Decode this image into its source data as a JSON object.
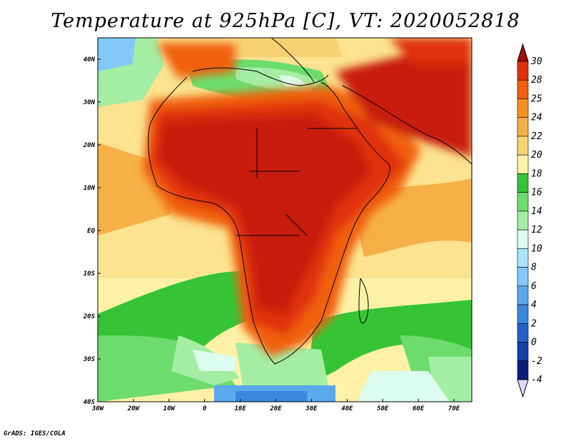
{
  "title": "Temperature at 925hPa [C], VT: 2020052818",
  "credit": "GrADS: IGES/COLA",
  "map": {
    "projection": "latlon",
    "lon_range": [
      -30,
      75
    ],
    "lat_range": [
      -40,
      45
    ],
    "x_ticks": [
      "30W",
      "20W",
      "10W",
      "0",
      "10E",
      "20E",
      "30E",
      "40E",
      "50E",
      "60E",
      "70E"
    ],
    "y_ticks": [
      "40N",
      "30N",
      "20N",
      "10N",
      "EQ",
      "10S",
      "20S",
      "30S",
      "40S"
    ]
  },
  "colorbar": {
    "labels": [
      "30",
      "28",
      "25",
      "24",
      "22",
      "20",
      "18",
      "16",
      "14",
      "12",
      "10",
      "8",
      "6",
      "4",
      "2",
      "0",
      "-2",
      "-4"
    ],
    "colors": [
      "#a50a0a",
      "#e0300a",
      "#f06010",
      "#f8901e",
      "#f6b048",
      "#f8d272",
      "#fff2a6",
      "#36c436",
      "#6cdc6c",
      "#a4eea4",
      "#dcfcf0",
      "#aae4ff",
      "#82c8f8",
      "#5aa8ee",
      "#3a88de",
      "#2460c8",
      "#1440a8",
      "#0c1c7e",
      "#ddd8ff"
    ]
  },
  "colors": {
    "ocean_background": "#fbe38f",
    "hot_core": "#c81a0a",
    "coast_line": "#000000"
  }
}
